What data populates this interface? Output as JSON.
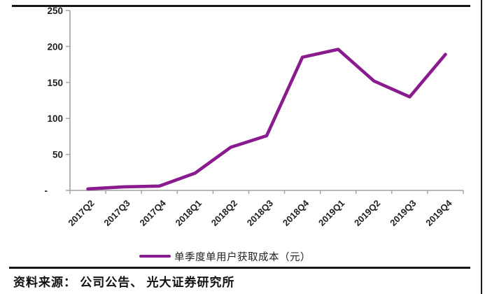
{
  "chart_data": {
    "type": "line",
    "categories": [
      "2017Q2",
      "2017Q3",
      "2017Q4",
      "2018Q1",
      "2018Q2",
      "2018Q3",
      "2018Q4",
      "2019Q1",
      "2019Q2",
      "2019Q3",
      "2019Q4"
    ],
    "series": [
      {
        "name": "单季度单用户获取成本（元）",
        "values": [
          2,
          5,
          6,
          24,
          60,
          76,
          185,
          196,
          152,
          130,
          189
        ]
      }
    ],
    "title": "",
    "xlabel": "",
    "ylabel": "",
    "ylim": [
      0,
      250
    ],
    "yticks": [
      0,
      50,
      100,
      150,
      200,
      250
    ],
    "ytick_labels": [
      "-",
      "50",
      "100",
      "150",
      "200",
      "250"
    ],
    "grid": "off",
    "legend_position": "bottom",
    "line_color": "#8A1B8E",
    "axis_color": "#A0A0A0",
    "tick_label_color": "#1F1F1F"
  },
  "legend": {
    "label": "单季度单用户获取成本（元）"
  },
  "footer": {
    "source_text": "资料来源： 公司公告、 光大证券研究所"
  }
}
